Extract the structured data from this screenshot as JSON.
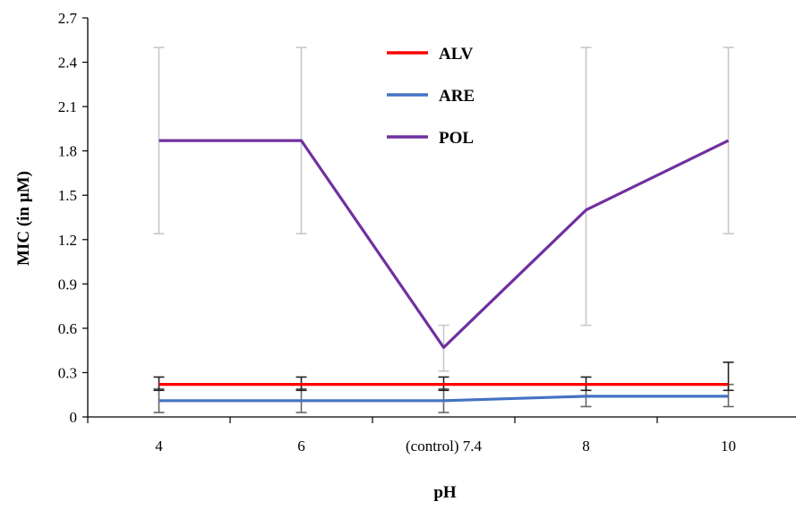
{
  "chart_data": {
    "type": "line",
    "xlabel": "pH",
    "ylabel": "MIC (in µM)",
    "categories": [
      "4",
      "6",
      "(control) 7.4",
      "8",
      "10"
    ],
    "ylim": [
      0,
      2.7
    ],
    "yticks": [
      "0",
      "0.3",
      "0.6",
      "0.9",
      "1.2",
      "1.5",
      "1.8",
      "2.1",
      "2.4",
      "2.7"
    ],
    "grid": false,
    "legend_position": "top-center",
    "series": [
      {
        "name": "ALV",
        "color": "#ff0000",
        "values": [
          0.22,
          0.22,
          0.22,
          0.22,
          0.22
        ],
        "error_low": [
          0.18,
          0.18,
          0.18,
          0.18,
          0.18
        ],
        "error_high": [
          0.27,
          0.27,
          0.27,
          0.27,
          0.37
        ],
        "error_color": "#222222"
      },
      {
        "name": "ARE",
        "color": "#4472c4",
        "values": [
          0.11,
          0.11,
          0.11,
          0.14,
          0.14
        ],
        "error_low": [
          0.03,
          0.03,
          0.03,
          0.07,
          0.07
        ],
        "error_high": [
          0.19,
          0.19,
          0.19,
          0.22,
          0.22
        ],
        "error_color": "#666666"
      },
      {
        "name": "POL",
        "color": "#7030a0",
        "values": [
          1.87,
          1.87,
          0.47,
          1.4,
          1.87
        ],
        "error_low": [
          1.24,
          1.24,
          0.31,
          0.62,
          1.24
        ],
        "error_high": [
          2.5,
          2.5,
          0.62,
          2.5,
          2.5
        ],
        "error_color": "#c8c8c8"
      }
    ]
  }
}
